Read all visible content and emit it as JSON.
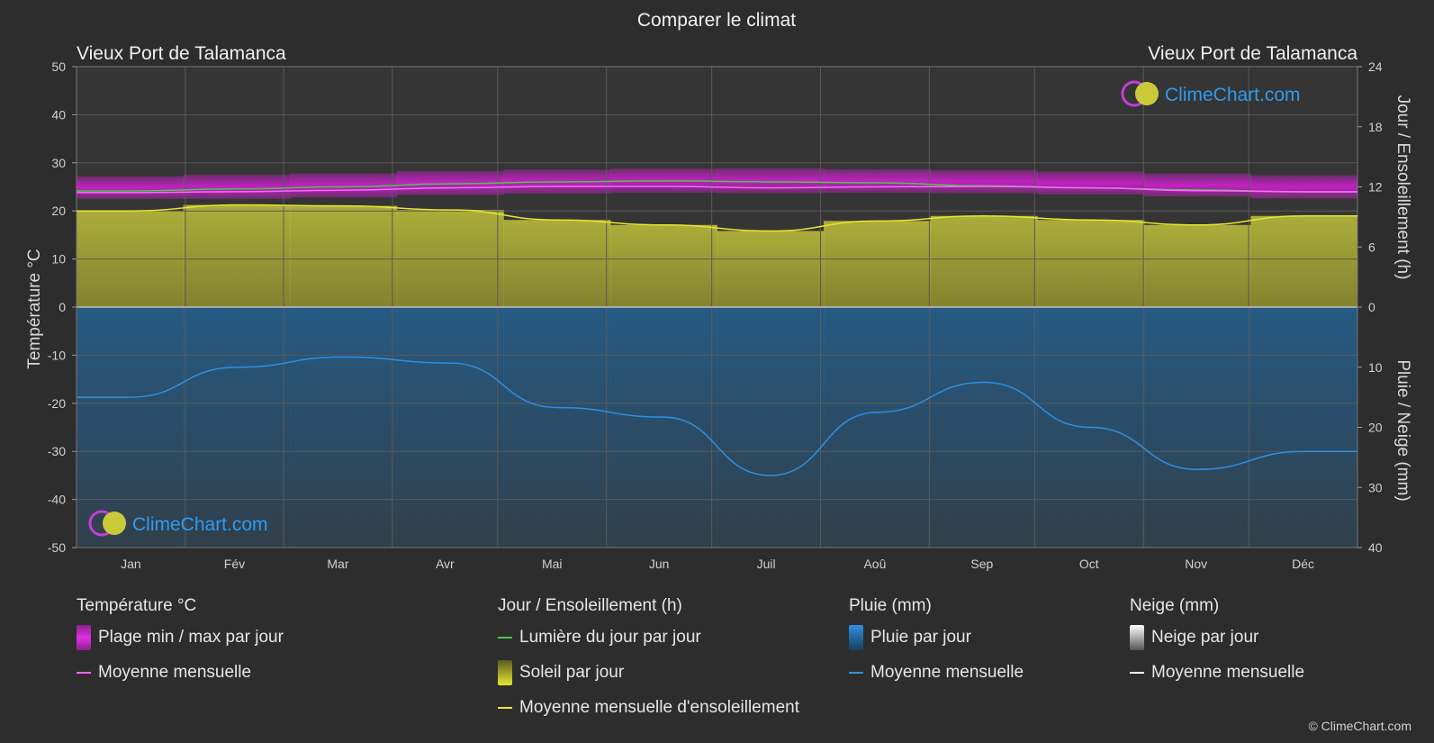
{
  "header": {
    "title": "Comparer le climat",
    "location_left": "Vieux Port de Talamanca",
    "location_right": "Vieux Port de Talamanca"
  },
  "brand": {
    "logo_text": "ClimeChart.com",
    "copyright": "© ClimeChart.com"
  },
  "colors": {
    "background": "#2d2d2d",
    "temp_range": "#d31fd3",
    "temp_mean": "#ff66ff",
    "daylight": "#44cc44",
    "sunshine_fill": "#b8b83a",
    "sunshine_mean": "#e6e632",
    "rain_fill": "#1e6ca8",
    "rain_mean": "#2e8fe0",
    "snow_mean": "#ffffff",
    "logo_text": "#2e9bf0"
  },
  "chart_data": {
    "type": "line",
    "categories": [
      "Jan",
      "Fév",
      "Mar",
      "Avr",
      "Mai",
      "Jun",
      "Juil",
      "Aoû",
      "Sep",
      "Oct",
      "Nov",
      "Déc"
    ],
    "yaxis_left": {
      "label": "Température °C",
      "ticks": [
        50,
        40,
        30,
        20,
        10,
        0,
        -10,
        -20,
        -30,
        -40,
        -50
      ],
      "range": [
        -50,
        50
      ]
    },
    "yaxis_right_top": {
      "label": "Jour / Ensoleillement (h)",
      "ticks": [
        24,
        18,
        12,
        6,
        0
      ],
      "range": [
        0,
        24
      ]
    },
    "yaxis_right_bottom": {
      "label": "Pluie / Neige (mm)",
      "ticks": [
        0,
        10,
        20,
        30,
        40
      ],
      "range": [
        0,
        40
      ]
    },
    "grid": true,
    "series": [
      {
        "name": "Plage min / max par jour",
        "unit": "°C",
        "min": [
          22.5,
          22.5,
          22.8,
          23.3,
          23.6,
          23.8,
          23.7,
          23.8,
          23.7,
          23.4,
          23.0,
          22.6
        ],
        "max": [
          27.2,
          27.5,
          27.8,
          28.3,
          28.6,
          28.8,
          28.9,
          28.7,
          28.5,
          28.2,
          27.8,
          27.4
        ]
      },
      {
        "name": "Moyenne mensuelle",
        "unit": "°C",
        "values": [
          23.8,
          24.0,
          24.3,
          24.8,
          25.1,
          25.1,
          24.8,
          25.0,
          25.1,
          24.8,
          24.2,
          24.0
        ]
      },
      {
        "name": "Lumière du jour par jour",
        "unit": "h",
        "values": [
          11.6,
          11.8,
          12.0,
          12.3,
          12.5,
          12.6,
          12.5,
          12.4,
          12.1,
          11.9,
          11.7,
          11.5
        ]
      },
      {
        "name": "Moyenne mensuelle d'ensoleillement",
        "unit": "h",
        "values": [
          9.6,
          10.2,
          10.1,
          9.7,
          8.7,
          8.2,
          7.6,
          8.6,
          9.1,
          8.7,
          8.2,
          9.1
        ]
      },
      {
        "name": "Moyenne mensuelle",
        "unit": "mm",
        "values": [
          15.0,
          10.0,
          8.3,
          9.3,
          16.7,
          18.3,
          28.0,
          17.5,
          12.5,
          20.0,
          27.0,
          24.0
        ]
      }
    ]
  },
  "legend": {
    "temperature": {
      "title": "Température °C",
      "items": [
        "Plage min / max par jour",
        "Moyenne mensuelle"
      ]
    },
    "sun": {
      "title": "Jour / Ensoleillement (h)",
      "items": [
        "Lumière du jour par jour",
        "Soleil par jour",
        "Moyenne mensuelle d'ensoleillement"
      ]
    },
    "rain": {
      "title": "Pluie (mm)",
      "items": [
        "Pluie par jour",
        "Moyenne mensuelle"
      ]
    },
    "snow": {
      "title": "Neige (mm)",
      "items": [
        "Neige par jour",
        "Moyenne mensuelle"
      ]
    }
  }
}
